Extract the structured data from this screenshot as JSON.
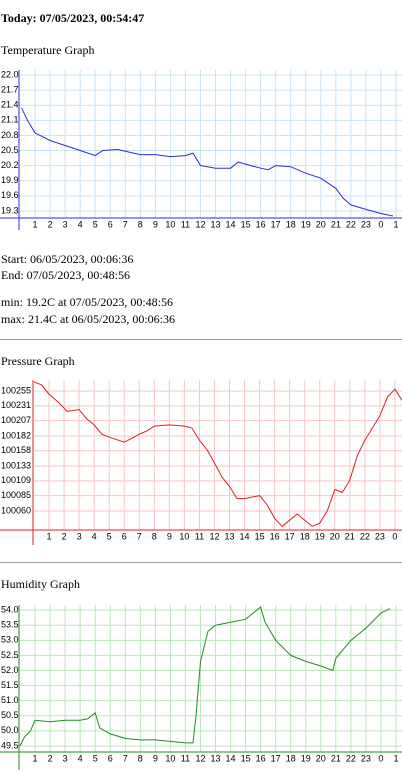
{
  "today": "Today: 07/05/2023, 00:54:47",
  "start": "Start: 06/05/2023, 00:06:36",
  "end": "End: 07/05/2023, 00:48:56",
  "min": "min: 19.2C at 07/05/2023, 00:48:56",
  "max": "max: 21.4C at 06/05/2023, 00:06:36",
  "chart_data": [
    {
      "type": "line",
      "title": "Temperature Graph",
      "color": "#2b2bd9",
      "grid": true,
      "grid_color": "#c9e3f3",
      "x": [
        0.1,
        0.5,
        1,
        2,
        3,
        4,
        5,
        5.5,
        6.5,
        8,
        9,
        10,
        11,
        11.5,
        12,
        13,
        14,
        14.5,
        15,
        16,
        16.5,
        17,
        18,
        19,
        20,
        21,
        21.5,
        22,
        23,
        24,
        24.8
      ],
      "values": [
        21.35,
        21.1,
        20.85,
        20.7,
        20.6,
        20.5,
        20.4,
        20.5,
        20.52,
        20.42,
        20.42,
        20.38,
        20.4,
        20.45,
        20.2,
        20.15,
        20.15,
        20.27,
        20.23,
        20.15,
        20.12,
        20.2,
        20.18,
        20.05,
        19.95,
        19.75,
        19.55,
        19.42,
        19.33,
        19.25,
        19.2
      ],
      "xlim": [
        0,
        25.4
      ],
      "ylim": [
        19.16,
        22.1
      ],
      "xticks": [
        1,
        2,
        3,
        4,
        5,
        6,
        7,
        8,
        9,
        10,
        11,
        12,
        13,
        14,
        15,
        16,
        17,
        18,
        19,
        20,
        21,
        22,
        23,
        {
          "value": 24,
          "label": "0"
        },
        {
          "value": 25,
          "label": "1"
        }
      ],
      "yticks": [
        {
          "value": 19.3,
          "label": "19.3"
        },
        {
          "value": 19.6,
          "label": "19.6"
        },
        {
          "value": 19.9,
          "label": "19.9"
        },
        {
          "value": 20.2,
          "label": "20.2"
        },
        {
          "value": 20.5,
          "label": "20.5"
        },
        {
          "value": 20.8,
          "label": "20.8"
        },
        {
          "value": 21.1,
          "label": "21.1"
        },
        {
          "value": 21.4,
          "label": "21.4"
        },
        {
          "value": 21.7,
          "label": "21.7"
        },
        {
          "value": 22.0,
          "label": "22.0"
        }
      ]
    },
    {
      "type": "line",
      "title": "Pressure Graph",
      "color": "#e02020",
      "grid": true,
      "grid_color": "#f7c6c6",
      "x": [
        0,
        0.5,
        1,
        1.7,
        2.2,
        3,
        3.5,
        4,
        4.5,
        5,
        6,
        6.5,
        7,
        7.5,
        8,
        9,
        10,
        10.5,
        11,
        11.5,
        12,
        12.5,
        13,
        13.5,
        14,
        15,
        15.5,
        16,
        16.5,
        17,
        17.5,
        18,
        18.5,
        19,
        19.5,
        20,
        20.5,
        21,
        21.5,
        22,
        23,
        23.5,
        24,
        24.47
      ],
      "values": [
        100270,
        100265,
        100250,
        100235,
        100222,
        100225,
        100210,
        100200,
        100185,
        100180,
        100172,
        100178,
        100185,
        100190,
        100198,
        100200,
        100198,
        100195,
        100175,
        100160,
        100138,
        100115,
        100100,
        100080,
        100080,
        100085,
        100070,
        100048,
        100035,
        100045,
        100055,
        100045,
        100035,
        100040,
        100060,
        100095,
        100090,
        100110,
        100150,
        100175,
        100215,
        100245,
        100258,
        100240
      ],
      "xlim": [
        0,
        24.47
      ],
      "ylim": [
        100029,
        100273
      ],
      "xticks": [
        1,
        2,
        3,
        4,
        5,
        6,
        7,
        8,
        9,
        10,
        11,
        12,
        13,
        14,
        15,
        16,
        17,
        18,
        19,
        20,
        21,
        22,
        23,
        {
          "value": 24,
          "label": "0"
        }
      ],
      "yticks": [
        100060,
        100085,
        100109,
        100133,
        100158,
        100182,
        100207,
        100231,
        100255
      ]
    },
    {
      "type": "line",
      "title": "Humidity Graph",
      "color": "#228b22",
      "grid": true,
      "grid_color": "#bde6bd",
      "x": [
        0,
        0.3,
        0.7,
        1,
        2,
        3,
        4,
        4.5,
        5,
        5.3,
        6,
        7,
        8,
        9,
        10,
        11,
        11.5,
        11.7,
        12,
        12.5,
        13,
        14,
        15,
        16,
        16.3,
        17,
        18,
        19,
        20,
        20.8,
        21,
        22,
        23,
        24,
        24.6
      ],
      "values": [
        49.5,
        49.8,
        50.0,
        50.35,
        50.3,
        50.35,
        50.35,
        50.4,
        50.6,
        50.1,
        49.9,
        49.75,
        49.7,
        49.7,
        49.65,
        49.6,
        49.6,
        50.5,
        52.3,
        53.3,
        53.5,
        53.6,
        53.7,
        54.1,
        53.6,
        53.0,
        52.5,
        52.3,
        52.15,
        52.0,
        52.4,
        53.0,
        53.4,
        53.9,
        54.05
      ],
      "xlim": [
        0,
        25.4
      ],
      "ylim": [
        49.3,
        54.17
      ],
      "xticks": [
        1,
        2,
        3,
        4,
        5,
        6,
        7,
        8,
        9,
        10,
        11,
        12,
        13,
        14,
        15,
        16,
        17,
        18,
        19,
        20,
        21,
        22,
        23,
        {
          "value": 24,
          "label": "0"
        },
        {
          "value": 25,
          "label": "1"
        }
      ],
      "yticks": [
        {
          "value": 49.5,
          "label": "49.5"
        },
        {
          "value": 50.0,
          "label": "50.0"
        },
        {
          "value": 50.5,
          "label": "50.5"
        },
        {
          "value": 51.0,
          "label": "51.0"
        },
        {
          "value": 51.5,
          "label": "51.5"
        },
        {
          "value": 52.0,
          "label": "52.0"
        },
        {
          "value": 52.5,
          "label": "52.5"
        },
        {
          "value": 53.0,
          "label": "53.0"
        },
        {
          "value": 53.5,
          "label": "53.5"
        },
        {
          "value": 54.0,
          "label": "54.0"
        }
      ]
    }
  ]
}
